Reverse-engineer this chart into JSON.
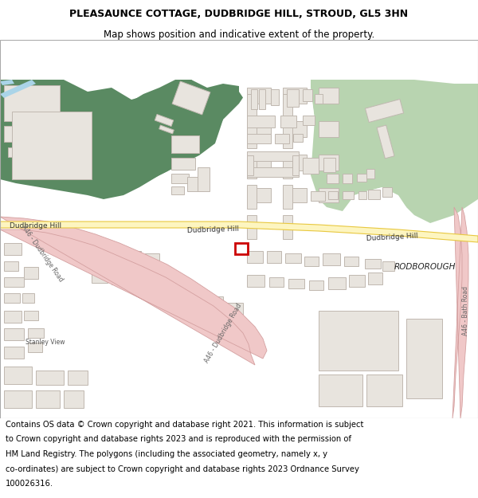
{
  "title_line1": "PLEASAUNCE COTTAGE, DUDBRIDGE HILL, STROUD, GL5 3HN",
  "title_line2": "Map shows position and indicative extent of the property.",
  "footer_lines": [
    "Contains OS data © Crown copyright and database right 2021. This information is subject",
    "to Crown copyright and database rights 2023 and is reproduced with the permission of",
    "HM Land Registry. The polygons (including the associated geometry, namely x, y",
    "co-ordinates) are subject to Crown copyright and database rights 2023 Ordnance Survey",
    "100026316."
  ],
  "title_fontsize": 9.0,
  "subtitle_fontsize": 8.5,
  "footer_fontsize": 7.2,
  "fig_width": 6.0,
  "fig_height": 6.25,
  "dpi": 100,
  "bg_color": "#f5f2ee",
  "green_dark": "#5a8a62",
  "green_light": "#b8d4b0",
  "road_yellow_fill": "#fdf5c0",
  "road_yellow_border": "#e8c840",
  "road_pink_fill": "#f0c8c8",
  "road_pink_border": "#d4a0a0",
  "building_fill": "#e8e4de",
  "building_edge": "#c0b8b0",
  "water_blue": "#aad4e8",
  "highlight_red": "#cc0000",
  "white": "#ffffff"
}
